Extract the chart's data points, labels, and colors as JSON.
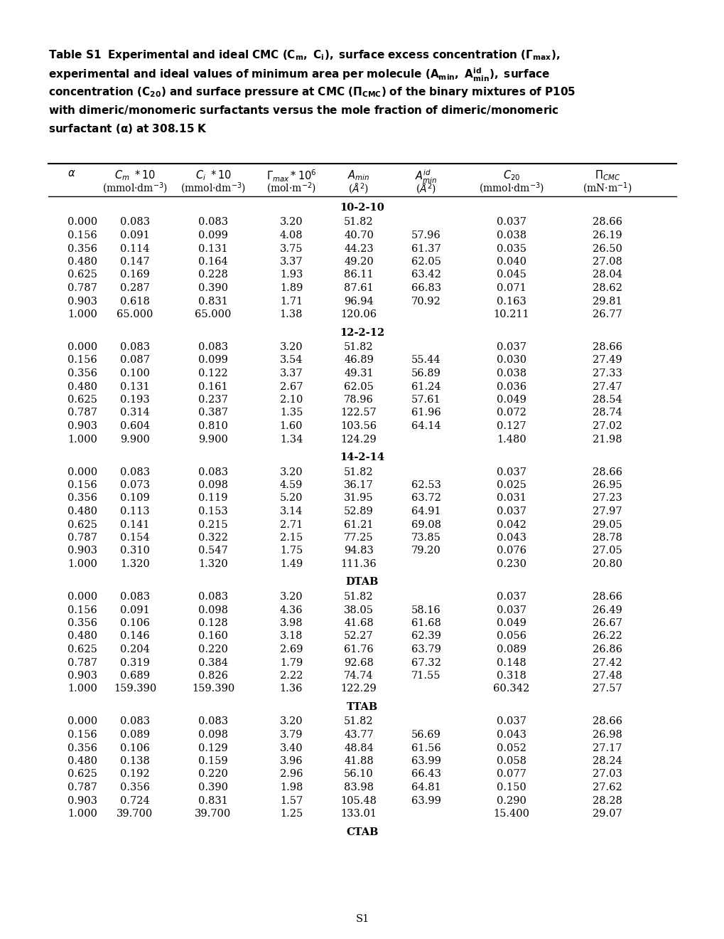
{
  "sections": [
    {
      "name": "10-2-10",
      "rows": [
        [
          "0.000",
          "0.083",
          "0.083",
          "3.20",
          "51.82",
          "",
          "0.037",
          "28.66"
        ],
        [
          "0.156",
          "0.091",
          "0.099",
          "4.08",
          "40.70",
          "57.96",
          "0.038",
          "26.19"
        ],
        [
          "0.356",
          "0.114",
          "0.131",
          "3.75",
          "44.23",
          "61.37",
          "0.035",
          "26.50"
        ],
        [
          "0.480",
          "0.147",
          "0.164",
          "3.37",
          "49.20",
          "62.05",
          "0.040",
          "27.08"
        ],
        [
          "0.625",
          "0.169",
          "0.228",
          "1.93",
          "86.11",
          "63.42",
          "0.045",
          "28.04"
        ],
        [
          "0.787",
          "0.287",
          "0.390",
          "1.89",
          "87.61",
          "66.83",
          "0.071",
          "28.62"
        ],
        [
          "0.903",
          "0.618",
          "0.831",
          "1.71",
          "96.94",
          "70.92",
          "0.163",
          "29.81"
        ],
        [
          "1.000",
          "65.000",
          "65.000",
          "1.38",
          "120.06",
          "",
          "10.211",
          "26.77"
        ]
      ]
    },
    {
      "name": "12-2-12",
      "rows": [
        [
          "0.000",
          "0.083",
          "0.083",
          "3.20",
          "51.82",
          "",
          "0.037",
          "28.66"
        ],
        [
          "0.156",
          "0.087",
          "0.099",
          "3.54",
          "46.89",
          "55.44",
          "0.030",
          "27.49"
        ],
        [
          "0.356",
          "0.100",
          "0.122",
          "3.37",
          "49.31",
          "56.89",
          "0.038",
          "27.33"
        ],
        [
          "0.480",
          "0.131",
          "0.161",
          "2.67",
          "62.05",
          "61.24",
          "0.036",
          "27.47"
        ],
        [
          "0.625",
          "0.193",
          "0.237",
          "2.10",
          "78.96",
          "57.61",
          "0.049",
          "28.54"
        ],
        [
          "0.787",
          "0.314",
          "0.387",
          "1.35",
          "122.57",
          "61.96",
          "0.072",
          "28.74"
        ],
        [
          "0.903",
          "0.604",
          "0.810",
          "1.60",
          "103.56",
          "64.14",
          "0.127",
          "27.02"
        ],
        [
          "1.000",
          "9.900",
          "9.900",
          "1.34",
          "124.29",
          "",
          "1.480",
          "21.98"
        ]
      ]
    },
    {
      "name": "14-2-14",
      "rows": [
        [
          "0.000",
          "0.083",
          "0.083",
          "3.20",
          "51.82",
          "",
          "0.037",
          "28.66"
        ],
        [
          "0.156",
          "0.073",
          "0.098",
          "4.59",
          "36.17",
          "62.53",
          "0.025",
          "26.95"
        ],
        [
          "0.356",
          "0.109",
          "0.119",
          "5.20",
          "31.95",
          "63.72",
          "0.031",
          "27.23"
        ],
        [
          "0.480",
          "0.113",
          "0.153",
          "3.14",
          "52.89",
          "64.91",
          "0.037",
          "27.97"
        ],
        [
          "0.625",
          "0.141",
          "0.215",
          "2.71",
          "61.21",
          "69.08",
          "0.042",
          "29.05"
        ],
        [
          "0.787",
          "0.154",
          "0.322",
          "2.15",
          "77.25",
          "73.85",
          "0.043",
          "28.78"
        ],
        [
          "0.903",
          "0.310",
          "0.547",
          "1.75",
          "94.83",
          "79.20",
          "0.076",
          "27.05"
        ],
        [
          "1.000",
          "1.320",
          "1.320",
          "1.49",
          "111.36",
          "",
          "0.230",
          "20.80"
        ]
      ]
    },
    {
      "name": "DTAB",
      "rows": [
        [
          "0.000",
          "0.083",
          "0.083",
          "3.20",
          "51.82",
          "",
          "0.037",
          "28.66"
        ],
        [
          "0.156",
          "0.091",
          "0.098",
          "4.36",
          "38.05",
          "58.16",
          "0.037",
          "26.49"
        ],
        [
          "0.356",
          "0.106",
          "0.128",
          "3.98",
          "41.68",
          "61.68",
          "0.049",
          "26.67"
        ],
        [
          "0.480",
          "0.146",
          "0.160",
          "3.18",
          "52.27",
          "62.39",
          "0.056",
          "26.22"
        ],
        [
          "0.625",
          "0.204",
          "0.220",
          "2.69",
          "61.76",
          "63.79",
          "0.089",
          "26.86"
        ],
        [
          "0.787",
          "0.319",
          "0.384",
          "1.79",
          "92.68",
          "67.32",
          "0.148",
          "27.42"
        ],
        [
          "0.903",
          "0.689",
          "0.826",
          "2.22",
          "74.74",
          "71.55",
          "0.318",
          "27.48"
        ],
        [
          "1.000",
          "159.390",
          "159.390",
          "1.36",
          "122.29",
          "",
          "60.342",
          "27.57"
        ]
      ]
    },
    {
      "name": "TTAB",
      "rows": [
        [
          "0.000",
          "0.083",
          "0.083",
          "3.20",
          "51.82",
          "",
          "0.037",
          "28.66"
        ],
        [
          "0.156",
          "0.089",
          "0.098",
          "3.79",
          "43.77",
          "56.69",
          "0.043",
          "26.98"
        ],
        [
          "0.356",
          "0.106",
          "0.129",
          "3.40",
          "48.84",
          "61.56",
          "0.052",
          "27.17"
        ],
        [
          "0.480",
          "0.138",
          "0.159",
          "3.96",
          "41.88",
          "63.99",
          "0.058",
          "28.24"
        ],
        [
          "0.625",
          "0.192",
          "0.220",
          "2.96",
          "56.10",
          "66.43",
          "0.077",
          "27.03"
        ],
        [
          "0.787",
          "0.356",
          "0.390",
          "1.98",
          "83.98",
          "64.81",
          "0.150",
          "27.62"
        ],
        [
          "0.903",
          "0.724",
          "0.831",
          "1.57",
          "105.48",
          "63.99",
          "0.290",
          "28.28"
        ],
        [
          "1.000",
          "39.700",
          "39.700",
          "1.25",
          "133.01",
          "",
          "15.400",
          "29.07"
        ]
      ]
    },
    {
      "name": "CTAB",
      "rows": []
    }
  ],
  "footer": "S1",
  "bg_color": "#ffffff",
  "text_color": "#000000"
}
